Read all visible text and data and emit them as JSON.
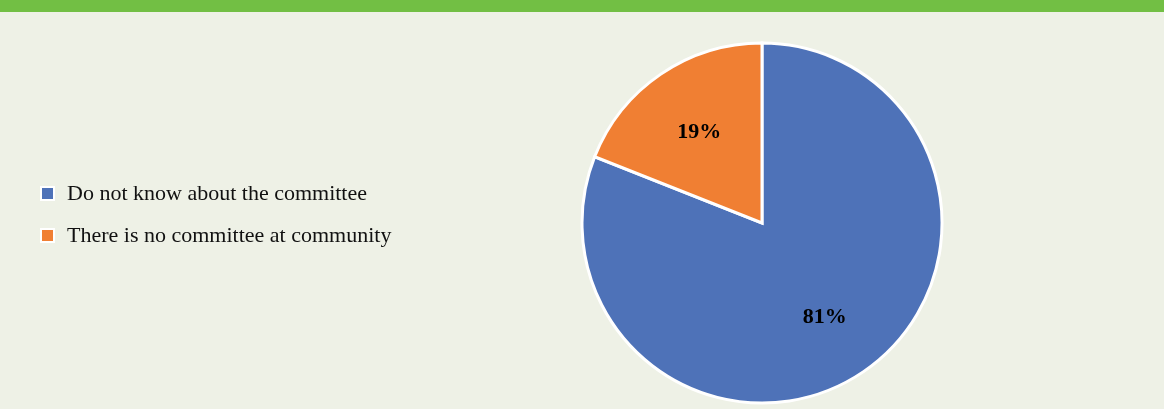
{
  "chart_data": {
    "type": "pie",
    "categories": [
      "Do not know about the committee",
      "There is no committee at community"
    ],
    "values": [
      81,
      19
    ],
    "colors": [
      "#4e72b8",
      "#f07f33"
    ],
    "value_labels": [
      "81%",
      "19%"
    ],
    "legend": "left"
  }
}
